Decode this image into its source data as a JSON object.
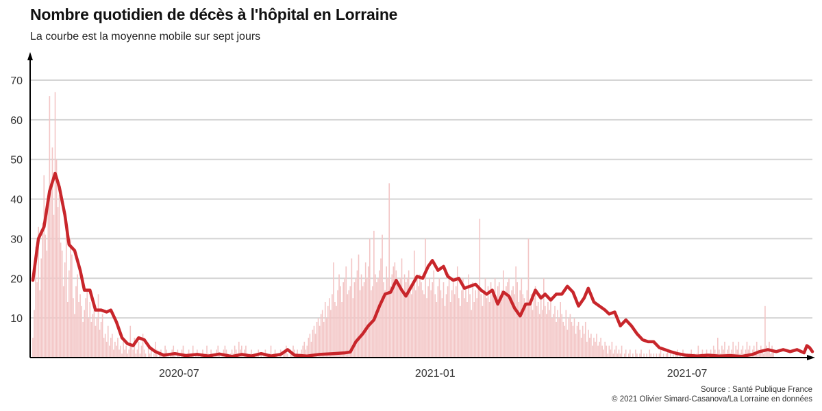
{
  "header": {
    "title": "Nombre quotidien de décès à l'hôpital en Lorraine",
    "subtitle": "La courbe est la moyenne mobile sur sept jours"
  },
  "footer": {
    "source": "Source : Santé Publique France",
    "credit": "© 2021 Olivier Simard-Casanova/La Lorraine en données"
  },
  "colors": {
    "line": "#c8262b",
    "bars": "#f3c6c6",
    "grid": "#d4d4d4",
    "axis": "#000000"
  },
  "chart_data": {
    "type": "bar",
    "title": "Nombre quotidien de décès à l'hôpital en Lorraine",
    "subtitle": "La courbe est la moyenne mobile sur sept jours",
    "xlabel": "",
    "ylabel": "",
    "x_start": "2020-03-18",
    "x_end": "2021-09-29",
    "xlim": [
      "2020-03-18",
      "2021-09-29"
    ],
    "ylim": [
      0,
      70
    ],
    "y_ticks": [
      10,
      20,
      30,
      40,
      50,
      60,
      70
    ],
    "x_ticks": [
      {
        "date": "2020-07-01",
        "label": "2020-07"
      },
      {
        "date": "2021-01-01",
        "label": "2021-01"
      },
      {
        "date": "2021-07-01",
        "label": "2021-07"
      }
    ],
    "grid": true,
    "series": [
      {
        "kind": "daily_bars",
        "daily_values": [
          5,
          12,
          28,
          19,
          33,
          17,
          25,
          34,
          46,
          31,
          27,
          40,
          66,
          44,
          53,
          36,
          67,
          50,
          38,
          41,
          29,
          27,
          18,
          24,
          32,
          14,
          22,
          30,
          26,
          15,
          11,
          18,
          21,
          14,
          16,
          13,
          9,
          12,
          15,
          17,
          10,
          14,
          9,
          11,
          12,
          8,
          10,
          16,
          7,
          9,
          11,
          5,
          6,
          4,
          8,
          3,
          5,
          6,
          2,
          4,
          3,
          5,
          2,
          3,
          1,
          4,
          2,
          3,
          1,
          2,
          8,
          3,
          2,
          5,
          1,
          2,
          4,
          1,
          3,
          6,
          2,
          1,
          0,
          3,
          1,
          2,
          0,
          1,
          4,
          2,
          0,
          1,
          2,
          1,
          0,
          3,
          2,
          1,
          0,
          1,
          2,
          3,
          1,
          0,
          2,
          1,
          0,
          2,
          3,
          1,
          0,
          1,
          2,
          0,
          1,
          3,
          0,
          1,
          2,
          1,
          0,
          1,
          2,
          0,
          1,
          3,
          1,
          0,
          2,
          1,
          0,
          1,
          2,
          3,
          1,
          0,
          1,
          2,
          3,
          2,
          1,
          0,
          1,
          2,
          1,
          3,
          2,
          1,
          4,
          2,
          3,
          1,
          2,
          3,
          1,
          0,
          1,
          2,
          0,
          1,
          0,
          1,
          2,
          0,
          1,
          0,
          1,
          2,
          1,
          0,
          1,
          3,
          0,
          1,
          2,
          1,
          0,
          1,
          2,
          0,
          1,
          2,
          3,
          1,
          0,
          2,
          1,
          3,
          2,
          1,
          2,
          0,
          1,
          2,
          3,
          4,
          2,
          3,
          5,
          6,
          4,
          7,
          8,
          6,
          9,
          10,
          8,
          11,
          12,
          9,
          14,
          10,
          13,
          15,
          12,
          16,
          24,
          14,
          13,
          17,
          21,
          18,
          14,
          19,
          20,
          23,
          16,
          17,
          18,
          25,
          15,
          19,
          20,
          22,
          26,
          17,
          21,
          18,
          19,
          24,
          20,
          23,
          30,
          17,
          18,
          32,
          21,
          19,
          20,
          22,
          25,
          31,
          19,
          17,
          23,
          20,
          44,
          18,
          21,
          23,
          24,
          22,
          19,
          18,
          20,
          25,
          17,
          21,
          19,
          20,
          22,
          18,
          16,
          19,
          27,
          17,
          20,
          18,
          21,
          19,
          17,
          16,
          30,
          15,
          18,
          20,
          17,
          19,
          22,
          16,
          14,
          18,
          20,
          17,
          15,
          19,
          13,
          16,
          18,
          21,
          14,
          17,
          19,
          16,
          18,
          23,
          15,
          13,
          17,
          20,
          15,
          18,
          14,
          21,
          16,
          12,
          19,
          14,
          17,
          15,
          18,
          35,
          16,
          13,
          17,
          20,
          15,
          18,
          14,
          19,
          16,
          17,
          20,
          15,
          18,
          19,
          14,
          17,
          22,
          16,
          18,
          19,
          20,
          15,
          17,
          18,
          16,
          23,
          19,
          14,
          17,
          20,
          16,
          15,
          13,
          17,
          30,
          14,
          16,
          12,
          15,
          18,
          13,
          14,
          11,
          16,
          12,
          20,
          13,
          11,
          14,
          12,
          15,
          10,
          11,
          13,
          9,
          12,
          10,
          14,
          11,
          9,
          8,
          12,
          7,
          10,
          11,
          9,
          8,
          10,
          6,
          8,
          9,
          7,
          5,
          8,
          6,
          9,
          4,
          7,
          5,
          6,
          3,
          5,
          4,
          6,
          3,
          4,
          5,
          3,
          2,
          4,
          3,
          1,
          3,
          2,
          4,
          1,
          2,
          3,
          1,
          2,
          1,
          3,
          0,
          1,
          2,
          0,
          1,
          2,
          0,
          1,
          0,
          2,
          1,
          0,
          1,
          2,
          0,
          1,
          0,
          1,
          0,
          2,
          1,
          0,
          1,
          0,
          1,
          0,
          1,
          2,
          0,
          1,
          0,
          1,
          2,
          0,
          1,
          0,
          1,
          0,
          1,
          2,
          0,
          1,
          0,
          2,
          1,
          0,
          1,
          0,
          1,
          2,
          0,
          1,
          0,
          1,
          3,
          0,
          1,
          2,
          0,
          1,
          2,
          0,
          1,
          2,
          1,
          3,
          2,
          1,
          5,
          2,
          1,
          3,
          2,
          4,
          1,
          2,
          3,
          1,
          2,
          4,
          1,
          3,
          2,
          4,
          1,
          2,
          3,
          1,
          2,
          4,
          2,
          3,
          1,
          2,
          3,
          1,
          4,
          2,
          1,
          3,
          2,
          1,
          13,
          3,
          2,
          4,
          1,
          3,
          2
        ]
      },
      {
        "kind": "moving_average_7d",
        "points": [
          [
            "2020-03-18",
            19.5
          ],
          [
            "2020-03-22",
            30
          ],
          [
            "2020-03-26",
            33
          ],
          [
            "2020-03-30",
            42
          ],
          [
            "2020-04-03",
            46.5
          ],
          [
            "2020-04-06",
            43
          ],
          [
            "2020-04-10",
            36
          ],
          [
            "2020-04-13",
            28.5
          ],
          [
            "2020-04-17",
            27
          ],
          [
            "2020-04-21",
            22
          ],
          [
            "2020-04-24",
            17
          ],
          [
            "2020-04-28",
            17
          ],
          [
            "2020-05-02",
            12
          ],
          [
            "2020-05-06",
            12
          ],
          [
            "2020-05-10",
            11.5
          ],
          [
            "2020-05-13",
            12
          ],
          [
            "2020-05-17",
            9
          ],
          [
            "2020-05-21",
            5
          ],
          [
            "2020-05-25",
            3.5
          ],
          [
            "2020-05-29",
            3
          ],
          [
            "2020-06-02",
            5
          ],
          [
            "2020-06-06",
            4.5
          ],
          [
            "2020-06-10",
            2.5
          ],
          [
            "2020-06-14",
            1.5
          ],
          [
            "2020-06-20",
            0.6
          ],
          [
            "2020-06-28",
            1
          ],
          [
            "2020-07-06",
            0.5
          ],
          [
            "2020-07-14",
            0.8
          ],
          [
            "2020-07-22",
            0.4
          ],
          [
            "2020-07-30",
            0.9
          ],
          [
            "2020-08-08",
            0.3
          ],
          [
            "2020-08-15",
            0.8
          ],
          [
            "2020-08-22",
            0.4
          ],
          [
            "2020-08-29",
            1
          ],
          [
            "2020-09-05",
            0.4
          ],
          [
            "2020-09-12",
            0.8
          ],
          [
            "2020-09-17",
            2
          ],
          [
            "2020-09-22",
            0.6
          ],
          [
            "2020-10-01",
            0.4
          ],
          [
            "2020-10-10",
            0.8
          ],
          [
            "2020-10-20",
            1
          ],
          [
            "2020-10-28",
            1.2
          ],
          [
            "2020-11-01",
            1.4
          ],
          [
            "2020-11-05",
            4
          ],
          [
            "2020-11-10",
            6
          ],
          [
            "2020-11-14",
            8
          ],
          [
            "2020-11-18",
            9.5
          ],
          [
            "2020-11-22",
            13
          ],
          [
            "2020-11-26",
            16
          ],
          [
            "2020-11-30",
            16.5
          ],
          [
            "2020-12-04",
            19.5
          ],
          [
            "2020-12-08",
            17
          ],
          [
            "2020-12-11",
            15.5
          ],
          [
            "2020-12-15",
            18
          ],
          [
            "2020-12-19",
            20.5
          ],
          [
            "2020-12-23",
            20
          ],
          [
            "2020-12-27",
            23
          ],
          [
            "2020-12-30",
            24.5
          ],
          [
            "2021-01-03",
            22
          ],
          [
            "2021-01-07",
            23
          ],
          [
            "2021-01-10",
            20.5
          ],
          [
            "2021-01-14",
            19.5
          ],
          [
            "2021-01-18",
            20
          ],
          [
            "2021-01-22",
            17.5
          ],
          [
            "2021-01-26",
            18
          ],
          [
            "2021-01-30",
            18.5
          ],
          [
            "2021-02-03",
            17
          ],
          [
            "2021-02-07",
            16
          ],
          [
            "2021-02-11",
            17
          ],
          [
            "2021-02-15",
            13.5
          ],
          [
            "2021-02-19",
            16.5
          ],
          [
            "2021-02-23",
            15.5
          ],
          [
            "2021-02-27",
            12.5
          ],
          [
            "2021-03-03",
            10.5
          ],
          [
            "2021-03-07",
            13.5
          ],
          [
            "2021-03-10",
            13.5
          ],
          [
            "2021-03-14",
            17
          ],
          [
            "2021-03-18",
            15
          ],
          [
            "2021-03-21",
            16
          ],
          [
            "2021-03-25",
            14.5
          ],
          [
            "2021-03-29",
            16
          ],
          [
            "2021-04-02",
            16
          ],
          [
            "2021-04-06",
            18
          ],
          [
            "2021-04-10",
            16.5
          ],
          [
            "2021-04-14",
            13
          ],
          [
            "2021-04-18",
            15
          ],
          [
            "2021-04-21",
            17.5
          ],
          [
            "2021-04-25",
            14
          ],
          [
            "2021-04-29",
            13
          ],
          [
            "2021-05-03",
            12
          ],
          [
            "2021-05-06",
            11
          ],
          [
            "2021-05-10",
            11.5
          ],
          [
            "2021-05-14",
            8
          ],
          [
            "2021-05-18",
            9.5
          ],
          [
            "2021-05-22",
            8
          ],
          [
            "2021-05-26",
            6
          ],
          [
            "2021-05-30",
            4.5
          ],
          [
            "2021-06-03",
            4
          ],
          [
            "2021-06-07",
            4
          ],
          [
            "2021-06-11",
            2.5
          ],
          [
            "2021-06-15",
            2
          ],
          [
            "2021-06-19",
            1.5
          ],
          [
            "2021-06-24",
            1
          ],
          [
            "2021-06-30",
            0.6
          ],
          [
            "2021-07-08",
            0.4
          ],
          [
            "2021-07-16",
            0.6
          ],
          [
            "2021-07-24",
            0.4
          ],
          [
            "2021-08-01",
            0.5
          ],
          [
            "2021-08-09",
            0.3
          ],
          [
            "2021-08-17",
            0.8
          ],
          [
            "2021-08-22",
            1.5
          ],
          [
            "2021-08-28",
            2
          ],
          [
            "2021-09-03",
            1.5
          ],
          [
            "2021-09-08",
            2
          ],
          [
            "2021-09-13",
            1.5
          ],
          [
            "2021-09-18",
            2
          ],
          [
            "2021-09-23",
            1.2
          ],
          [
            "2021-09-25",
            3
          ],
          [
            "2021-09-27",
            2.5
          ],
          [
            "2021-09-29",
            1.5
          ]
        ]
      }
    ]
  }
}
